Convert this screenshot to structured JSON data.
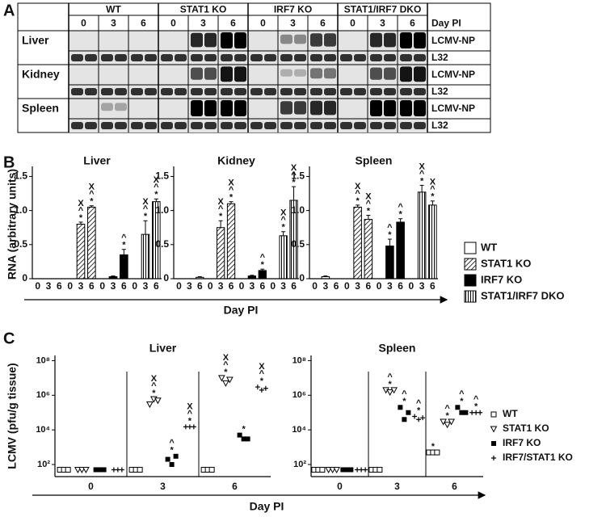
{
  "panel_labels": [
    "A",
    "B",
    "C"
  ],
  "blot": {
    "groups": [
      "WT",
      "STAT1 KO",
      "IRF7 KO",
      "STAT1/IRF7 DKO"
    ],
    "days": [
      "0",
      "3",
      "6"
    ],
    "day_header": "Day PI",
    "tissues": [
      "Liver",
      "Kidney",
      "Spleen"
    ],
    "probes": [
      "LCMV-NP",
      "L32"
    ]
  },
  "chart_data": [
    {
      "type": "bar",
      "title": "Liver",
      "ylabel": "RNA (arbitrary units)",
      "xlabel": "Day PI",
      "categories": [
        "0",
        "3",
        "6"
      ],
      "ylim": [
        0,
        1.6
      ],
      "yticks": [
        0,
        0.5,
        {
          "value": 1,
          "label": "1.0"
        },
        1.5
      ],
      "series": [
        {
          "name": "WT",
          "color": "#ffffff",
          "pattern": null,
          "values": [
            0,
            0,
            0
          ],
          "errors": [
            0,
            0,
            0
          ],
          "labels": [
            null,
            null,
            null
          ]
        },
        {
          "name": "STAT1 KO",
          "color": "#ffffff",
          "pattern": "diagonal",
          "values": [
            0,
            0.8,
            1.05
          ],
          "errors": [
            0,
            0.03,
            0.02
          ],
          "labels": [
            null,
            [
              "X",
              "^",
              "*"
            ],
            [
              "X",
              "^",
              "*"
            ]
          ]
        },
        {
          "name": "IRF7 KO",
          "color": "#000000",
          "pattern": null,
          "values": [
            0,
            0.03,
            0.35
          ],
          "errors": [
            0,
            0.01,
            0.08
          ],
          "labels": [
            null,
            null,
            [
              "^",
              "*"
            ]
          ]
        },
        {
          "name": "STAT1/IRF7 DKO",
          "color": "#ffffff",
          "pattern": "vertical",
          "values": [
            0,
            0.65,
            1.13
          ],
          "errors": [
            0,
            0.2,
            0.04
          ],
          "labels": [
            null,
            [
              "X",
              "^",
              "*"
            ],
            [
              "X",
              "^",
              "*"
            ]
          ]
        }
      ]
    },
    {
      "type": "bar",
      "title": "Kidney",
      "categories": [
        "0",
        "3",
        "6"
      ],
      "ylim": [
        0,
        1.6
      ],
      "yticks": [
        0,
        0.5,
        {
          "value": 1,
          "label": "1.0"
        },
        1.5
      ],
      "series": [
        {
          "color": "#ffffff",
          "pattern": null,
          "values": [
            0,
            0,
            0.02
          ],
          "errors": [
            0,
            0,
            0.01
          ],
          "labels": [
            null,
            null,
            null
          ]
        },
        {
          "color": "#ffffff",
          "pattern": "diagonal",
          "values": [
            0,
            0.75,
            1.1
          ],
          "errors": [
            0,
            0.1,
            0.03
          ],
          "labels": [
            null,
            [
              "X",
              "^",
              "*"
            ],
            [
              "X",
              "^",
              "*"
            ]
          ]
        },
        {
          "color": "#000000",
          "pattern": null,
          "values": [
            0,
            0.04,
            0.12
          ],
          "errors": [
            0,
            0.01,
            0.02
          ],
          "labels": [
            null,
            null,
            [
              "^",
              "*"
            ]
          ]
        },
        {
          "color": "#ffffff",
          "pattern": "vertical",
          "values": [
            0,
            0.63,
            1.15
          ],
          "errors": [
            0,
            0.06,
            0.2
          ],
          "labels": [
            null,
            [
              "X",
              "^",
              "*"
            ],
            [
              "X",
              "^",
              "*"
            ]
          ]
        }
      ]
    },
    {
      "type": "bar",
      "title": "Spleen",
      "categories": [
        "0",
        "3",
        "6"
      ],
      "ylim": [
        0,
        1.6
      ],
      "yticks": [
        0,
        0.5,
        {
          "value": 1,
          "label": "1.0"
        },
        1.5
      ],
      "series": [
        {
          "color": "#ffffff",
          "pattern": null,
          "values": [
            0,
            0.03,
            0
          ],
          "errors": [
            0,
            0.01,
            0
          ],
          "labels": [
            null,
            null,
            null
          ]
        },
        {
          "color": "#ffffff",
          "pattern": "diagonal",
          "values": [
            0,
            1.05,
            0.87
          ],
          "errors": [
            0,
            0.03,
            0.06
          ],
          "labels": [
            null,
            [
              "X",
              "^",
              "*"
            ],
            [
              "X",
              "^",
              "*"
            ]
          ]
        },
        {
          "color": "#000000",
          "pattern": null,
          "values": [
            0,
            0.48,
            0.83
          ],
          "errors": [
            0,
            0.1,
            0.05
          ],
          "labels": [
            null,
            [
              "^",
              "*"
            ],
            [
              "^",
              "*"
            ]
          ]
        },
        {
          "color": "#ffffff",
          "pattern": "vertical",
          "values": [
            0,
            1.27,
            1.08
          ],
          "errors": [
            0,
            0.1,
            0.06
          ],
          "labels": [
            null,
            [
              "X",
              "^",
              "*"
            ],
            [
              "X",
              "^",
              "*"
            ]
          ]
        }
      ]
    },
    {
      "type": "strip",
      "title": "Liver",
      "ylabel": "LCMV (pfu/g tissue)",
      "xlabel": "Day PI",
      "categories": [
        "0",
        "3",
        "6"
      ],
      "log": true,
      "ylim": [
        20,
        200000000
      ],
      "yticks": [
        {
          "value": 100,
          "label": "10²"
        },
        {
          "value": 10000,
          "label": "10⁴"
        },
        {
          "value": 1000000,
          "label": "10⁶"
        },
        {
          "value": 100000000,
          "label": "10⁸"
        }
      ],
      "series": [
        {
          "name": "WT",
          "marker": "open-square",
          "values": [
            [
              50,
              50,
              50
            ],
            [
              50,
              50,
              50
            ],
            [
              50,
              50,
              50
            ]
          ],
          "labels": [
            null,
            null,
            null
          ]
        },
        {
          "name": "STAT1 KO",
          "marker": "open-triangle",
          "values": [
            [
              50,
              50,
              50
            ],
            [
              300000,
              600000,
              500000
            ],
            [
              10000000,
              5000000,
              8000000
            ]
          ],
          "labels": [
            null,
            [
              "X",
              "^",
              "*"
            ],
            [
              "X",
              "^",
              "*"
            ]
          ]
        },
        {
          "name": "IRF7 KO",
          "marker": "filled-square",
          "values": [
            [
              50,
              50,
              50
            ],
            [
              200,
              100,
              300
            ],
            [
              5000,
              3000,
              3000
            ]
          ],
          "labels": [
            null,
            [
              "^",
              "*"
            ],
            [
              "*"
            ]
          ]
        },
        {
          "name": "IRF7/STAT1 KO",
          "marker": "plus",
          "values": [
            [
              50,
              50,
              50
            ],
            [
              15000,
              15000,
              15000
            ],
            [
              3000000,
              2000000,
              2500000
            ]
          ],
          "labels": [
            null,
            [
              "X",
              "^",
              "*"
            ],
            [
              "X",
              "^",
              "*"
            ]
          ]
        }
      ]
    },
    {
      "type": "strip",
      "title": "Spleen",
      "categories": [
        "0",
        "3",
        "6"
      ],
      "log": true,
      "ylim": [
        20,
        200000000
      ],
      "yticks": [
        {
          "value": 100,
          "label": "10²"
        },
        {
          "value": 10000,
          "label": "10⁴"
        },
        {
          "value": 1000000,
          "label": "10⁶"
        },
        {
          "value": 100000000,
          "label": "10⁸"
        }
      ],
      "series": [
        {
          "marker": "open-square",
          "values": [
            [
              50,
              50,
              50
            ],
            [
              50,
              50,
              50
            ],
            [
              500,
              500,
              500
            ]
          ],
          "labels": [
            null,
            null,
            [
              "*"
            ]
          ]
        },
        {
          "marker": "open-triangle",
          "values": [
            [
              50,
              50,
              50
            ],
            [
              2000000,
              1500000,
              2000000
            ],
            [
              30000,
              20000,
              30000
            ]
          ],
          "labels": [
            null,
            [
              "^",
              "*"
            ],
            [
              "^",
              "*"
            ]
          ]
        },
        {
          "marker": "filled-square",
          "values": [
            [
              50,
              50,
              50
            ],
            [
              200000,
              40000,
              100000
            ],
            [
              200000,
              100000,
              100000
            ]
          ],
          "labels": [
            null,
            [
              "^",
              "*"
            ],
            [
              "^",
              "*"
            ]
          ]
        },
        {
          "marker": "plus",
          "values": [
            [
              50,
              50,
              50
            ],
            [
              60000,
              40000,
              50000
            ],
            [
              100000,
              100000,
              100000
            ]
          ],
          "labels": [
            null,
            [
              "^",
              "*"
            ],
            [
              "^",
              "*"
            ]
          ]
        }
      ]
    }
  ]
}
